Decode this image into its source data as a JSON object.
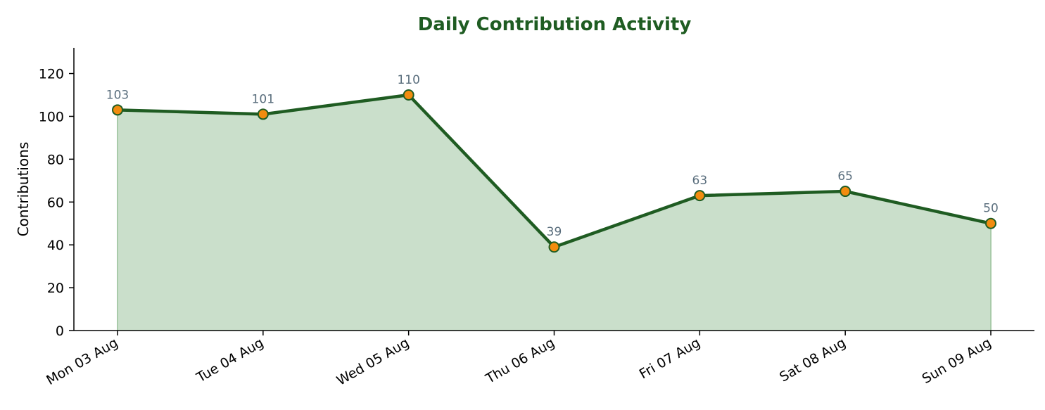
{
  "chart_data": {
    "type": "area",
    "title": "Daily Contribution Activity",
    "xlabel": "",
    "ylabel": "Contributions",
    "categories": [
      "Mon 03 Aug",
      "Tue 04 Aug",
      "Wed 05 Aug",
      "Thu 06 Aug",
      "Fri 07 Aug",
      "Sat 08 Aug",
      "Sun 09 Aug"
    ],
    "series": [
      {
        "values": [
          103,
          101,
          110,
          39,
          63,
          65,
          50
        ]
      }
    ],
    "data_labels": [
      "103",
      "101",
      "110",
      "39",
      "63",
      "65",
      "50"
    ],
    "yticks": [
      "0",
      "20",
      "40",
      "60",
      "80",
      "100",
      "120"
    ],
    "ylim": [
      0,
      132
    ],
    "grid": false,
    "legend": "none",
    "colors": {
      "line": "#1f5c22",
      "fill": "#cadfcb",
      "marker": "#f28c0f",
      "marker_edge": "#1f5c22",
      "title": "#1f5c22",
      "data_label": "#5a6e7d"
    }
  }
}
